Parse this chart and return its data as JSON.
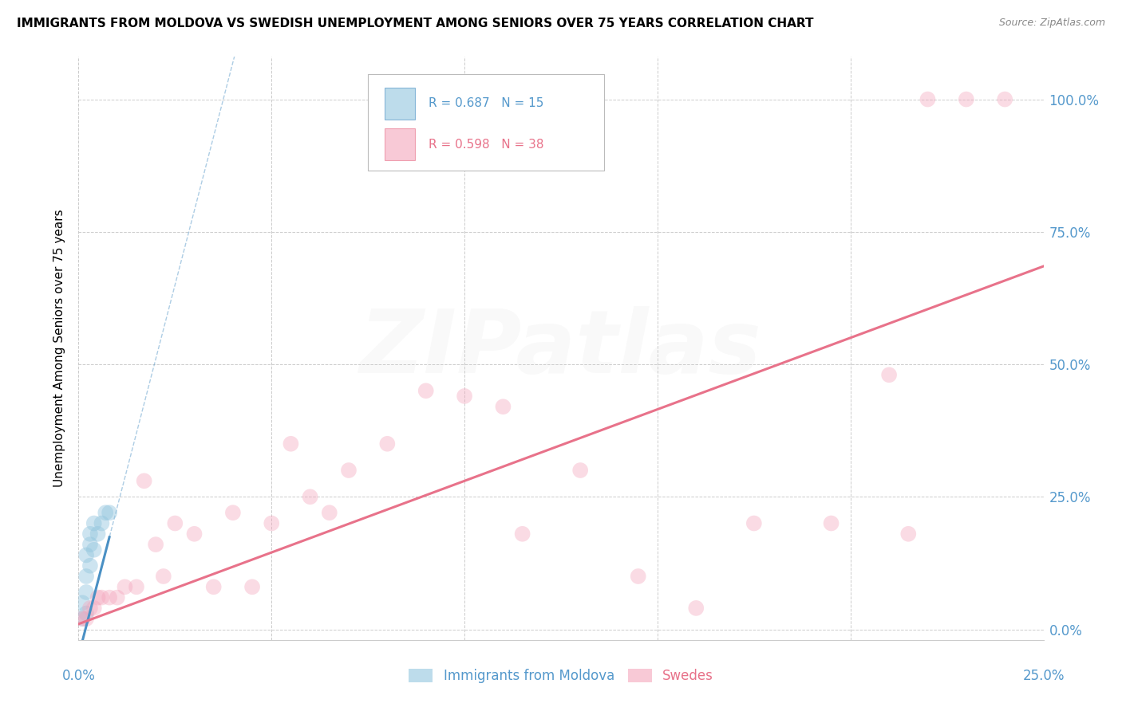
{
  "title": "IMMIGRANTS FROM MOLDOVA VS SWEDISH UNEMPLOYMENT AMONG SENIORS OVER 75 YEARS CORRELATION CHART",
  "source": "Source: ZipAtlas.com",
  "ylabel_left": "Unemployment Among Seniors over 75 years",
  "ylabel_right_labels": [
    "0.0%",
    "25.0%",
    "50.0%",
    "75.0%",
    "100.0%"
  ],
  "ylabel_right_ticks": [
    0.0,
    0.25,
    0.5,
    0.75,
    1.0
  ],
  "xlim": [
    0.0,
    0.25
  ],
  "ylim": [
    -0.02,
    1.08
  ],
  "legend1_label": "Immigrants from Moldova",
  "legend2_label": "Swedes",
  "color_blue": "#92c5de",
  "color_pink": "#f4a6bc",
  "color_blue_line": "#4a90c4",
  "color_pink_line": "#e8728a",
  "color_blue_text": "#5599cc",
  "color_pink_text": "#e8728a",
  "blue_x": [
    0.001,
    0.001,
    0.002,
    0.002,
    0.002,
    0.002,
    0.003,
    0.003,
    0.003,
    0.004,
    0.004,
    0.005,
    0.006,
    0.007,
    0.008
  ],
  "blue_y": [
    0.02,
    0.05,
    0.03,
    0.07,
    0.1,
    0.14,
    0.12,
    0.16,
    0.18,
    0.15,
    0.2,
    0.18,
    0.2,
    0.22,
    0.22
  ],
  "pink_x": [
    0.001,
    0.002,
    0.003,
    0.004,
    0.005,
    0.006,
    0.008,
    0.01,
    0.012,
    0.015,
    0.017,
    0.02,
    0.022,
    0.025,
    0.03,
    0.035,
    0.04,
    0.045,
    0.05,
    0.055,
    0.06,
    0.065,
    0.07,
    0.08,
    0.09,
    0.1,
    0.11,
    0.115,
    0.13,
    0.145,
    0.16,
    0.175,
    0.195,
    0.21,
    0.215,
    0.22,
    0.23,
    0.24
  ],
  "pink_y": [
    0.02,
    0.02,
    0.04,
    0.04,
    0.06,
    0.06,
    0.06,
    0.06,
    0.08,
    0.08,
    0.28,
    0.16,
    0.1,
    0.2,
    0.18,
    0.08,
    0.22,
    0.08,
    0.2,
    0.35,
    0.25,
    0.22,
    0.3,
    0.35,
    0.45,
    0.44,
    0.42,
    0.18,
    0.3,
    0.1,
    0.04,
    0.2,
    0.2,
    0.48,
    0.18,
    1.0,
    1.0,
    1.0
  ],
  "blue_scatter_size": 200,
  "pink_scatter_size": 200,
  "blue_scatter_alpha": 0.45,
  "pink_scatter_alpha": 0.4,
  "grid_color": "#cccccc",
  "grid_linestyle": "--",
  "watermark_text": "ZIPatlas",
  "watermark_alpha": 0.07,
  "watermark_fontsize": 80,
  "yticks": [
    0.0,
    0.25,
    0.5,
    0.75,
    1.0
  ],
  "xticks": [
    0.0,
    0.05,
    0.1,
    0.15,
    0.2,
    0.25
  ],
  "blue_line_intercept": -0.05,
  "blue_line_slope": 28.0,
  "pink_line_intercept": 0.01,
  "pink_line_slope": 2.7
}
